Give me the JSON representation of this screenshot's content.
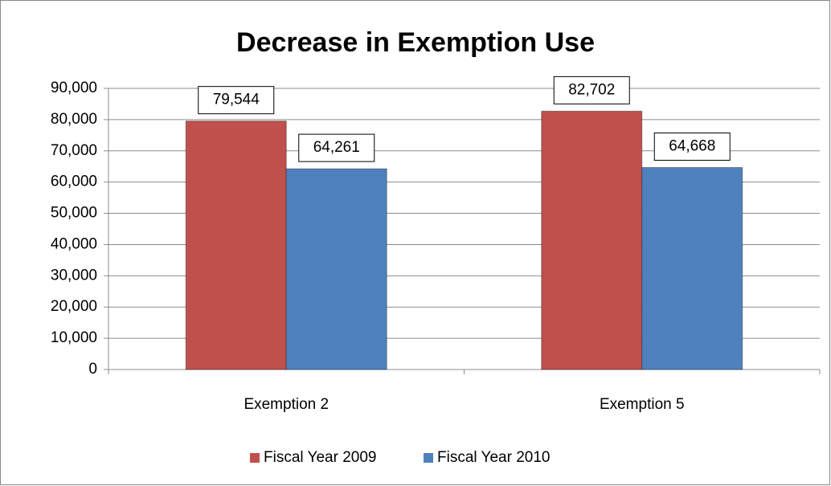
{
  "chart_data": {
    "type": "bar",
    "title": "Decrease in Exemption Use",
    "categories": [
      "Exemption 2",
      "Exemption 5"
    ],
    "series": [
      {
        "name": "Fiscal Year 2009",
        "color": "#c0504d",
        "values": [
          79544,
          82702
        ],
        "value_labels": [
          "79,544",
          "82,702"
        ]
      },
      {
        "name": "Fiscal Year 2010",
        "color": "#4f81bd",
        "values": [
          64261,
          64668
        ],
        "value_labels": [
          "64,261",
          "64,668"
        ]
      }
    ],
    "ylim": [
      0,
      90000
    ],
    "yticks": [
      0,
      {
        "value": 10000,
        "label": "10,000"
      },
      {
        "value": 20000,
        "label": "20,000"
      },
      {
        "value": 30000,
        "label": "30,000"
      },
      {
        "value": 40000,
        "label": "40,000"
      },
      {
        "value": 50000,
        "label": "50,000"
      },
      {
        "value": 60000,
        "label": "60,000"
      },
      {
        "value": 70000,
        "label": "70,000"
      },
      {
        "value": 80000,
        "label": "80,000"
      },
      {
        "value": 90000,
        "label": "90,000"
      }
    ],
    "grid": true,
    "legend": "bottom"
  }
}
